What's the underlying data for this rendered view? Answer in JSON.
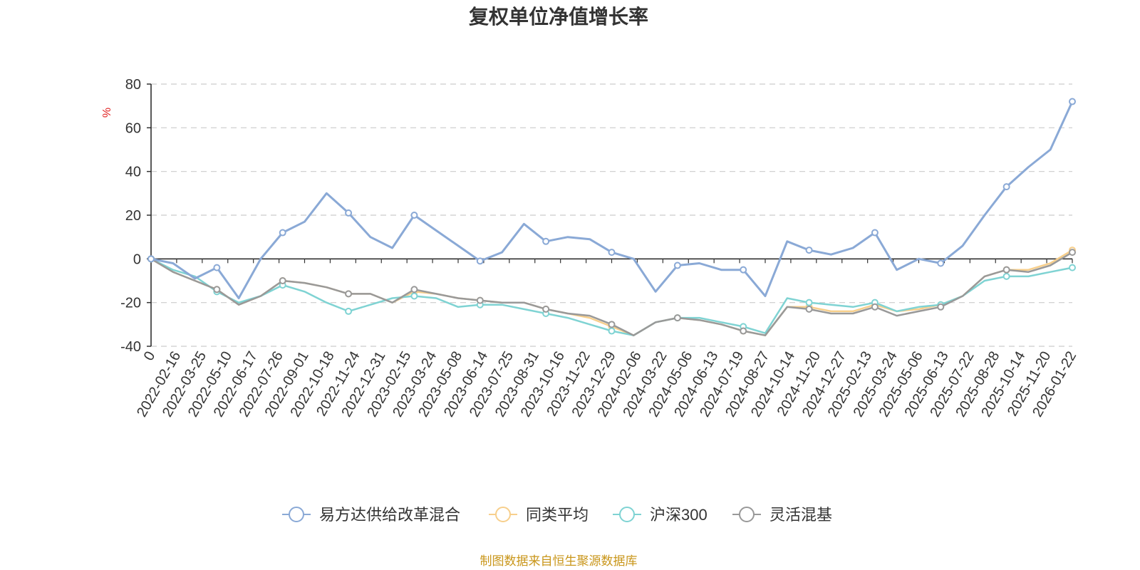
{
  "title": "复权单位净值增长率",
  "source_note": "制图数据来自恒生聚源数据库",
  "chart_data": {
    "type": "line",
    "title": "复权单位净值增长率",
    "ylabel": "%",
    "xlabel": "",
    "ylim": [
      -40,
      80
    ],
    "yticks": [
      80,
      60,
      40,
      20,
      0,
      -20,
      -40
    ],
    "grid": true,
    "legend_position": "bottom",
    "x_tick_labels": [
      "0",
      "2022-02-16",
      "2022-03-25",
      "2022-05-10",
      "2022-06-17",
      "2022-07-26",
      "2022-09-01",
      "2022-10-18",
      "2022-11-24",
      "2022-12-31",
      "2023-02-15",
      "2023-03-24",
      "2023-05-08",
      "2023-06-14",
      "2023-07-25",
      "2023-08-31",
      "2023-10-16",
      "2023-11-22",
      "2023-12-29",
      "2024-02-06",
      "2024-03-22",
      "2024-05-06",
      "2024-06-13",
      "2024-07-19",
      "2024-08-27",
      "2024-10-14",
      "2024-11-20",
      "2024-12-27",
      "2025-02-13",
      "2025-03-24",
      "2025-05-06",
      "2025-06-13",
      "2025-07-22",
      "2025-08-28",
      "2025-10-14",
      "2025-11-20",
      "2026-01-22"
    ],
    "series": [
      {
        "name": "易方达供给改革混合",
        "color": "#8aa9d6",
        "values": [
          0,
          -2,
          -9,
          -4,
          -18,
          0,
          12,
          17,
          30,
          21,
          10,
          5,
          20,
          13,
          6,
          -1,
          3,
          16,
          8,
          10,
          9,
          3,
          0,
          -15,
          -3,
          -2,
          -5,
          -5,
          -17,
          8,
          4,
          2,
          5,
          12,
          -5,
          0,
          -2,
          6,
          20,
          33,
          42,
          50,
          72
        ]
      },
      {
        "name": "同类平均",
        "color": "#f7cf8c",
        "values": [
          0,
          -6,
          -10,
          -14,
          -21,
          -17,
          -10,
          -11,
          -13,
          -16,
          -16,
          -20,
          -15,
          -16,
          -18,
          -19,
          -20,
          -20,
          -23,
          -25,
          -27,
          -31,
          -35,
          -29,
          -27,
          -28,
          -30,
          -33,
          -35,
          -22,
          -22,
          -24,
          -24,
          -21,
          -24,
          -23,
          -21,
          -17,
          -8,
          -5,
          -5,
          -2,
          4
        ]
      },
      {
        "name": "沪深300",
        "color": "#7fd3d3",
        "values": [
          0,
          -5,
          -8,
          -15,
          -20,
          -17,
          -12,
          -15,
          -20,
          -24,
          -21,
          -18,
          -17,
          -18,
          -22,
          -21,
          -21,
          -23,
          -25,
          -27,
          -30,
          -33,
          -35,
          -29,
          -27,
          -27,
          -29,
          -31,
          -34,
          -18,
          -20,
          -21,
          -22,
          -20,
          -24,
          -22,
          -21,
          -17,
          -10,
          -8,
          -8,
          -6,
          -4
        ]
      },
      {
        "name": "灵活混基",
        "color": "#999999",
        "values": [
          0,
          -6,
          -10,
          -14,
          -21,
          -17,
          -10,
          -11,
          -13,
          -16,
          -16,
          -20,
          -14,
          -16,
          -18,
          -19,
          -20,
          -20,
          -23,
          -25,
          -26,
          -30,
          -35,
          -29,
          -27,
          -28,
          -30,
          -33,
          -35,
          -22,
          -23,
          -25,
          -25,
          -22,
          -26,
          -24,
          -22,
          -17,
          -8,
          -5,
          -6,
          -3,
          3
        ]
      }
    ]
  }
}
